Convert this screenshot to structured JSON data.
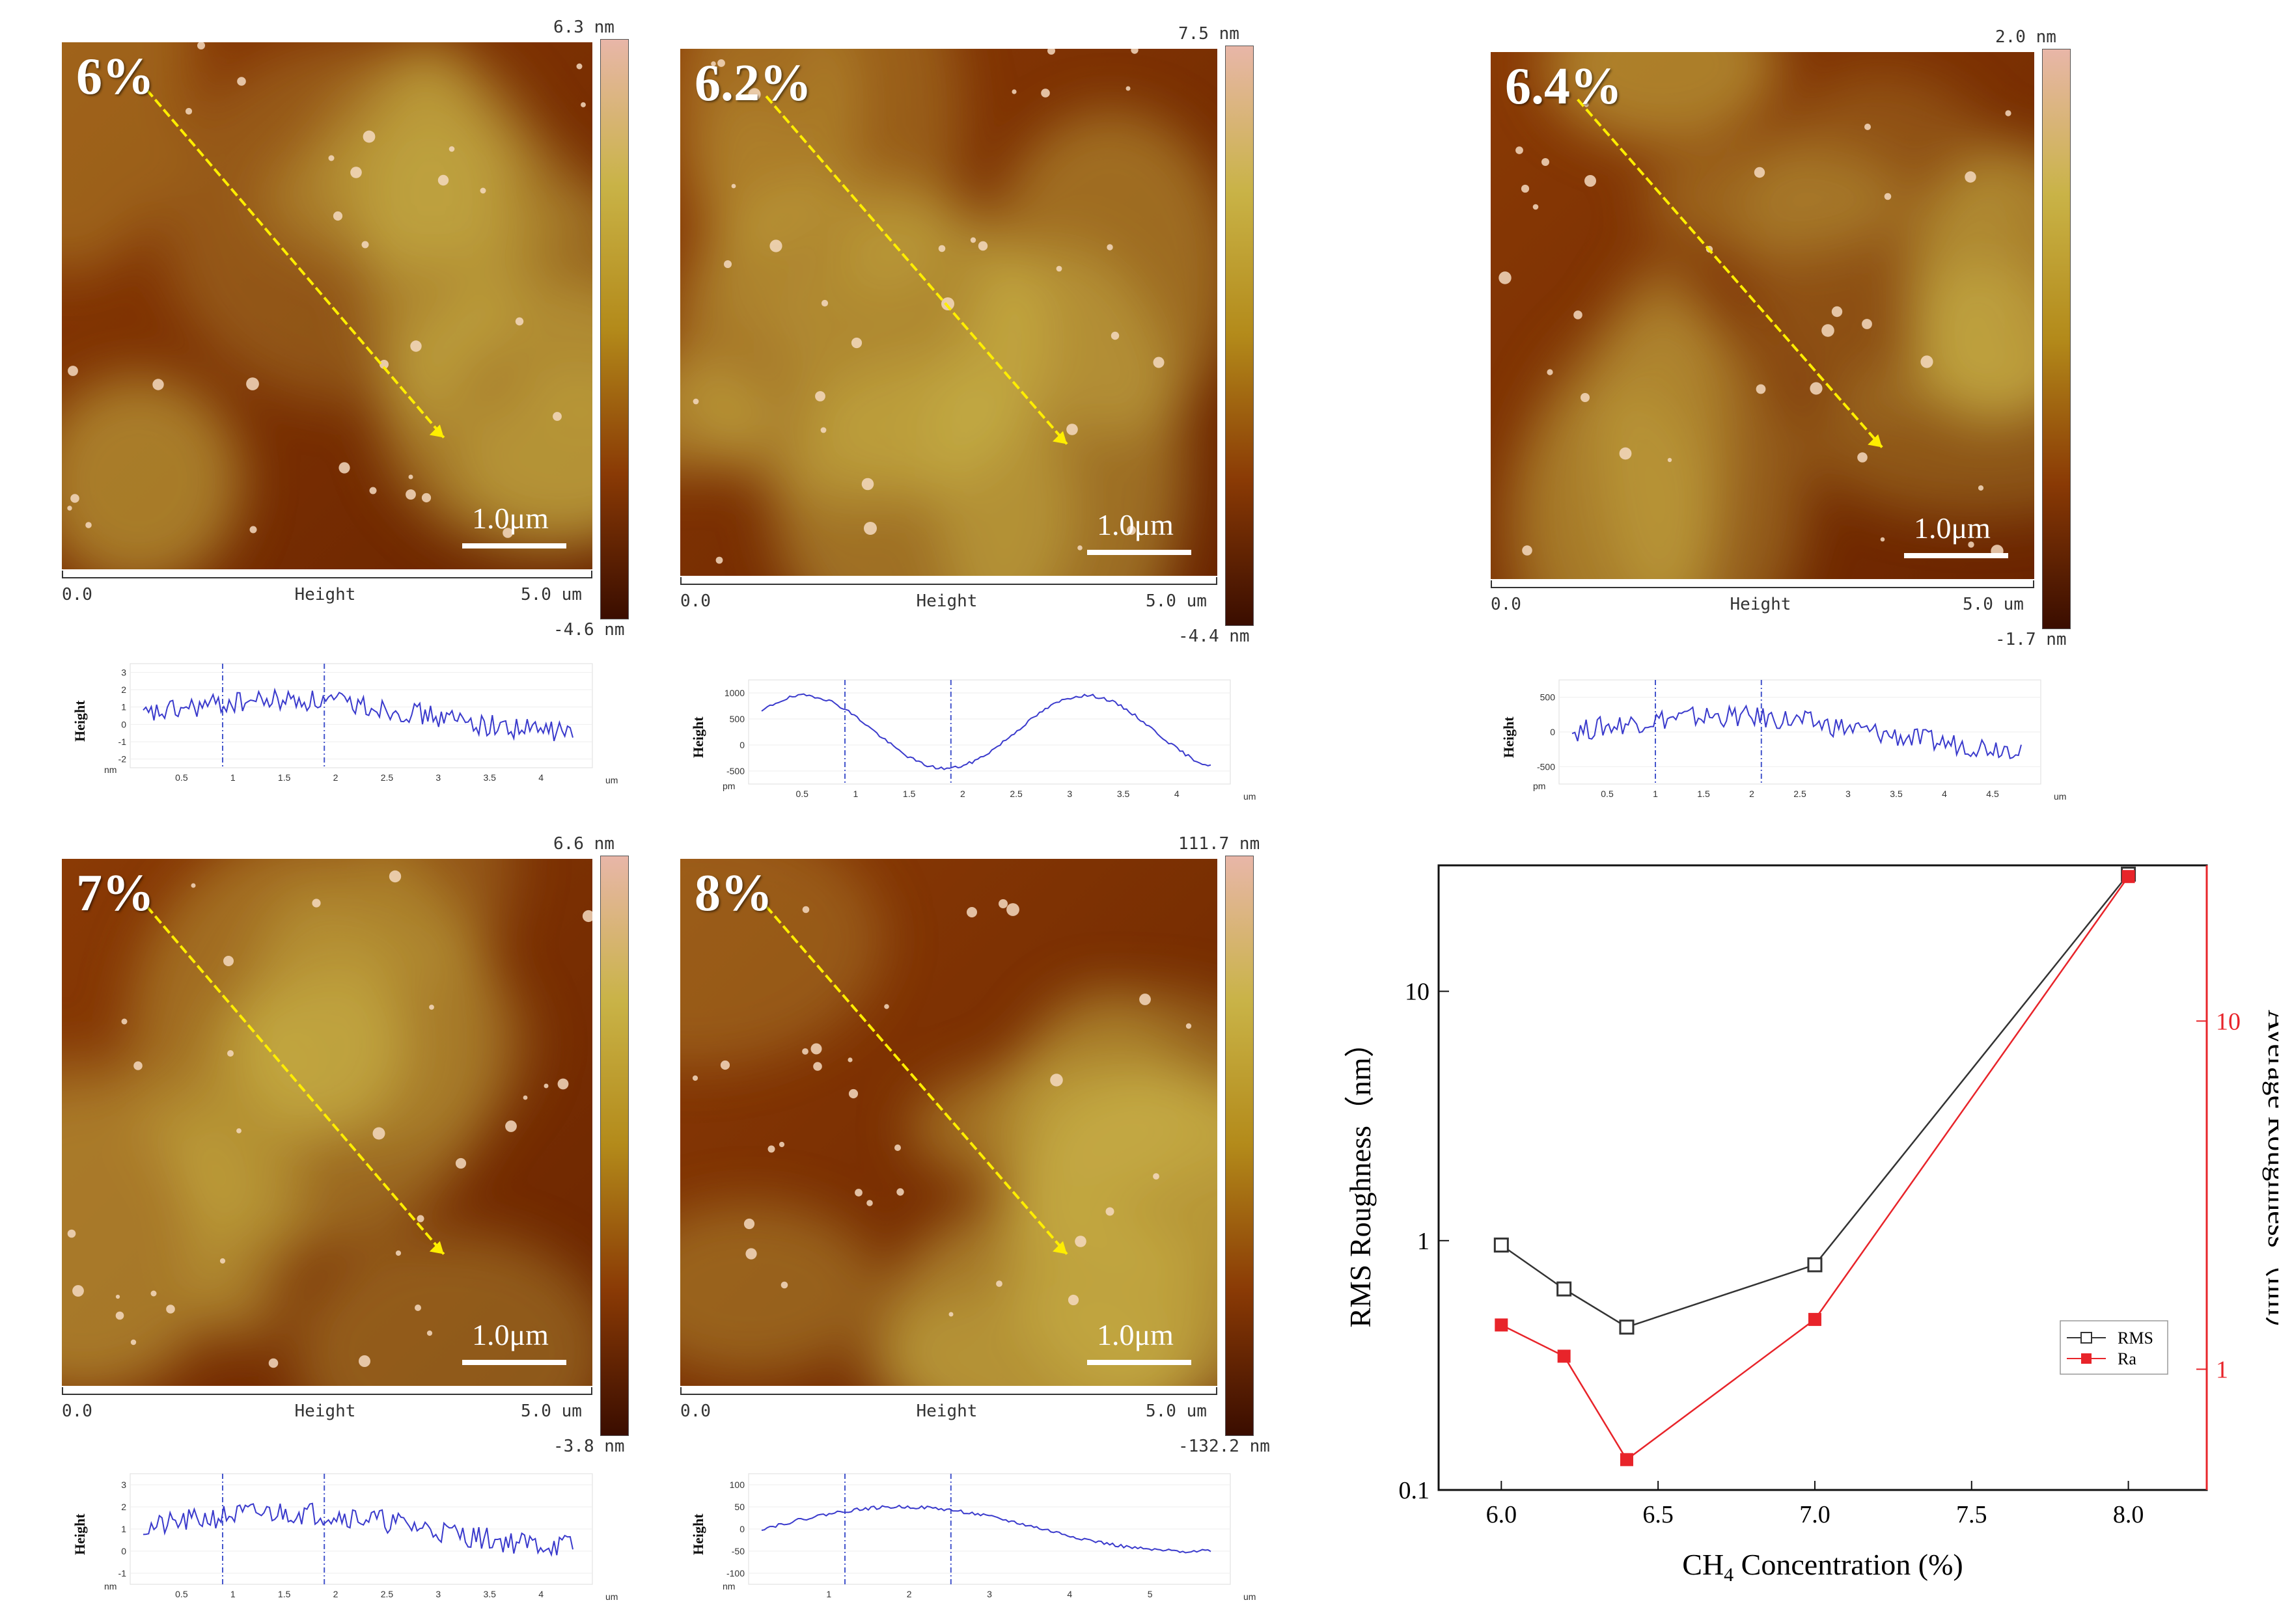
{
  "afm_panels": [
    {
      "concentration": "6%",
      "scale_label": "1.0μm",
      "cbar_max": "6.3 nm",
      "cbar_min": "-4.6 nm",
      "axis_start": "0.0",
      "axis_title": "Height",
      "axis_end": "5.0 um",
      "profile": {
        "ylabel": "Height",
        "yunit": "nm",
        "xunit": "um",
        "yticks": [
          "3",
          "2",
          "1",
          "0",
          "-1",
          "-2"
        ],
        "xticks": [
          "0.5",
          "1",
          "1.5",
          "2",
          "2.5",
          "3",
          "3.5",
          "4"
        ]
      }
    },
    {
      "concentration": "6.2%",
      "scale_label": "1.0μm",
      "cbar_max": "7.5 nm",
      "cbar_min": "-4.4 nm",
      "axis_start": "0.0",
      "axis_title": "Height",
      "axis_end": "5.0 um",
      "profile": {
        "ylabel": "Height",
        "yunit": "pm",
        "xunit": "um",
        "yticks": [
          "1000",
          "500",
          "0",
          "-500"
        ],
        "xticks": [
          "0.5",
          "1",
          "1.5",
          "2",
          "2.5",
          "3",
          "3.5",
          "4"
        ]
      }
    },
    {
      "concentration": "6.4%",
      "scale_label": "1.0μm",
      "cbar_max": "2.0 nm",
      "cbar_min": "-1.7 nm",
      "axis_start": "0.0",
      "axis_title": "Height",
      "axis_end": "5.0 um",
      "profile": {
        "ylabel": "Height",
        "yunit": "pm",
        "xunit": "um",
        "yticks": [
          "500",
          "0",
          "-500"
        ],
        "xticks": [
          "0.5",
          "1",
          "1.5",
          "2",
          "2.5",
          "3",
          "3.5",
          "4",
          "4.5"
        ]
      }
    },
    {
      "concentration": "7%",
      "scale_label": "1.0μm",
      "cbar_max": "6.6 nm",
      "cbar_min": "-3.8 nm",
      "axis_start": "0.0",
      "axis_title": "Height",
      "axis_end": "5.0 um",
      "profile": {
        "ylabel": "Height",
        "yunit": "nm",
        "xunit": "um",
        "yticks": [
          "3",
          "2",
          "1",
          "0",
          "-1"
        ],
        "xticks": [
          "0.5",
          "1",
          "1.5",
          "2",
          "2.5",
          "3",
          "3.5",
          "4"
        ]
      }
    },
    {
      "concentration": "8%",
      "scale_label": "1.0μm",
      "cbar_max": "111.7 nm",
      "cbar_min": "-132.2 nm",
      "axis_start": "0.0",
      "axis_title": "Height",
      "axis_end": "5.0 um",
      "profile": {
        "ylabel": "Height",
        "yunit": "nm",
        "xunit": "um",
        "yticks": [
          "100",
          "50",
          "0",
          "-50",
          "-100"
        ],
        "xticks": [
          "1",
          "2",
          "3",
          "4",
          "5"
        ]
      }
    }
  ],
  "colors": {
    "afm_dark": "#3a0d00",
    "afm_mid": "#8a3a05",
    "afm_light": "#c9b347",
    "rms_line": "#333333",
    "ra_line": "#e8242a"
  },
  "chart_data": {
    "type": "line",
    "xlabel": "CH4 Concentration (%)",
    "ylabel_left": "RMS Roughness（nm）",
    "ylabel_right": "Average Roughness（nm）",
    "x_ticks": [
      "6.0",
      "6.5",
      "7.0",
      "7.5",
      "8.0"
    ],
    "x_range": [
      5.8,
      8.25
    ],
    "left_log_range": [
      0.1,
      32
    ],
    "left_ticks": [
      "0.1",
      "1",
      "10"
    ],
    "right_log_range": [
      0.45,
      28
    ],
    "right_ticks": [
      "1",
      "10"
    ],
    "series": [
      {
        "name": "RMS",
        "axis": "left",
        "marker": "open-square",
        "x": [
          6.0,
          6.2,
          6.4,
          7.0,
          8.0
        ],
        "values": [
          0.96,
          0.64,
          0.45,
          0.8,
          29.5
        ]
      },
      {
        "name": "Ra",
        "axis": "right",
        "marker": "filled-square",
        "x": [
          6.0,
          6.2,
          6.4,
          7.0,
          8.0
        ],
        "values": [
          1.34,
          1.09,
          0.55,
          1.39,
          26.0
        ]
      }
    ],
    "legend": "lower-right"
  }
}
